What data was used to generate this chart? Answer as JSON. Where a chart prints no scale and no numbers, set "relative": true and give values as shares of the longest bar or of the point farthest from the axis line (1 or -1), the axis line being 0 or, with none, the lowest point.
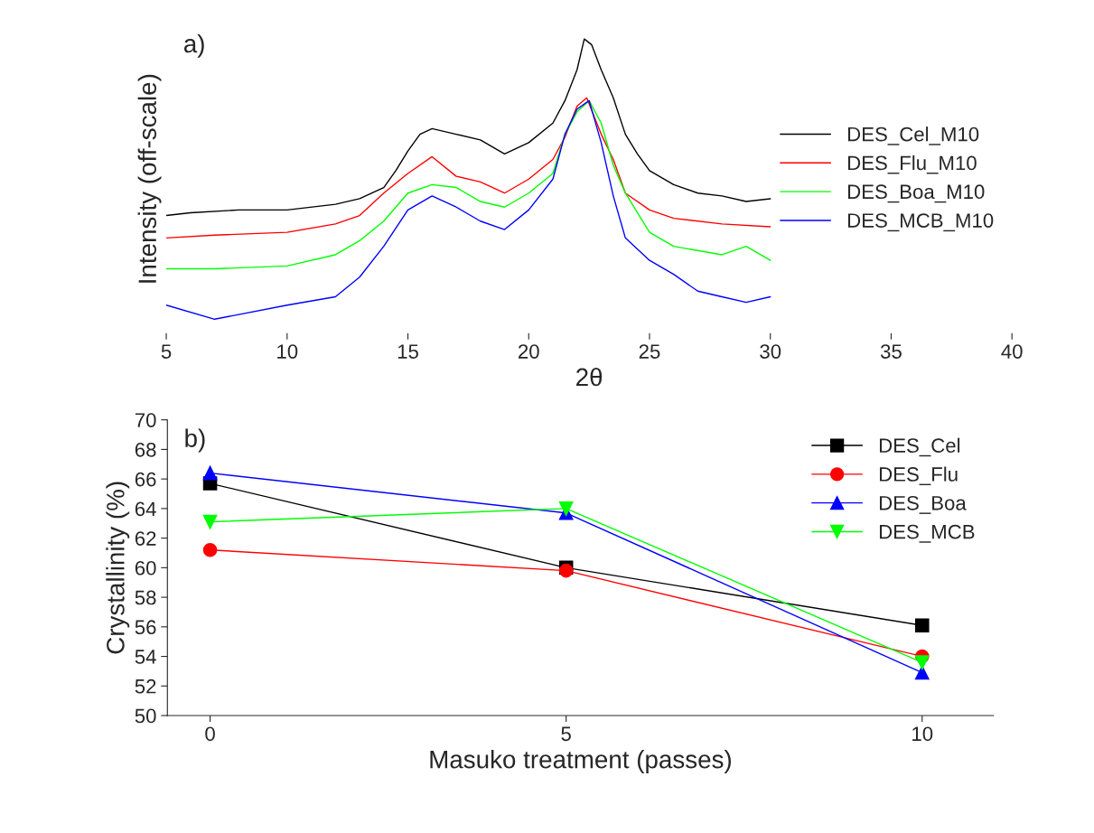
{
  "chart_data": [
    {
      "type": "line",
      "relative": true,
      "xlabel": "2θ",
      "ylabel": "Intensity (off-scale)",
      "annotations": [
        "a)"
      ],
      "xlim": [
        5,
        40
      ],
      "xticks": [
        5,
        10,
        15,
        20,
        25,
        30,
        35,
        40
      ],
      "tick_labels": "x",
      "legend": "right",
      "grid": false,
      "marker": "none",
      "line_style": "solid",
      "series": [
        {
          "name": "DES_Cel_M10",
          "color": "#000000",
          "x": [
            5,
            6,
            8,
            10,
            12,
            13,
            14,
            14.5,
            15,
            15.5,
            16,
            17,
            18,
            19,
            20,
            21,
            21.5,
            22,
            22.3,
            22.6,
            23,
            23.5,
            24,
            24.5,
            25,
            26,
            27,
            28,
            29,
            30
          ],
          "values": [
            0.37,
            0.38,
            0.39,
            0.39,
            0.41,
            0.43,
            0.47,
            0.53,
            0.6,
            0.66,
            0.68,
            0.66,
            0.64,
            0.59,
            0.63,
            0.7,
            0.78,
            0.89,
            1,
            0.98,
            0.89,
            0.79,
            0.66,
            0.59,
            0.53,
            0.48,
            0.45,
            0.44,
            0.42,
            0.43
          ]
        },
        {
          "name": "DES_Flu_M10",
          "color": "#ff0000",
          "x": [
            5,
            7,
            10,
            12,
            13,
            14,
            15,
            16,
            17,
            18,
            19,
            20,
            21,
            21.5,
            22,
            22.4,
            23,
            23.5,
            24,
            25,
            26,
            28,
            30
          ],
          "values": [
            0.29,
            0.3,
            0.31,
            0.34,
            0.37,
            0.45,
            0.52,
            0.58,
            0.51,
            0.49,
            0.45,
            0.5,
            0.57,
            0.65,
            0.76,
            0.79,
            0.66,
            0.57,
            0.45,
            0.39,
            0.36,
            0.34,
            0.33
          ]
        },
        {
          "name": "DES_Boa_M10",
          "color": "#00ff00",
          "x": [
            5,
            7,
            10,
            12,
            13,
            14,
            15,
            16,
            17,
            18,
            19,
            20,
            21,
            21.5,
            22,
            22.5,
            23,
            23.5,
            24,
            25,
            26,
            28,
            29,
            30
          ],
          "values": [
            0.18,
            0.18,
            0.19,
            0.23,
            0.28,
            0.35,
            0.45,
            0.48,
            0.47,
            0.42,
            0.4,
            0.45,
            0.52,
            0.66,
            0.74,
            0.78,
            0.7,
            0.55,
            0.45,
            0.31,
            0.26,
            0.23,
            0.26,
            0.21
          ]
        },
        {
          "name": "DES_MCB_M10",
          "color": "#0000ff",
          "x": [
            5,
            7,
            10,
            12,
            13,
            14,
            15,
            16,
            17,
            18,
            19,
            20,
            21,
            21.5,
            22,
            22.5,
            23,
            23.5,
            24,
            25,
            26,
            27,
            28,
            29,
            30
          ],
          "values": [
            0.05,
            0,
            0.05,
            0.08,
            0.15,
            0.26,
            0.39,
            0.44,
            0.4,
            0.35,
            0.32,
            0.39,
            0.5,
            0.66,
            0.75,
            0.78,
            0.63,
            0.44,
            0.29,
            0.21,
            0.16,
            0.1,
            0.08,
            0.06,
            0.08
          ]
        }
      ]
    },
    {
      "type": "line",
      "xlabel": "Masuko treatment (passes)",
      "ylabel": "Crystallinity (%)",
      "annotations": [
        "b)"
      ],
      "x": [
        0,
        5,
        10
      ],
      "xlim": [
        -0.6,
        11
      ],
      "xticks": [
        0,
        5,
        10
      ],
      "ylim": [
        50,
        70
      ],
      "yticks": [
        50,
        52,
        54,
        56,
        58,
        60,
        62,
        64,
        66,
        68,
        70
      ],
      "legend": "top right",
      "grid": false,
      "line_style": "solid",
      "series": [
        {
          "name": "DES_Cel",
          "color": "#000000",
          "marker": "square",
          "values": [
            65.7,
            60.0,
            56.1
          ]
        },
        {
          "name": "DES_Flu",
          "color": "#ff0000",
          "marker": "circle",
          "values": [
            61.2,
            59.8,
            54.0
          ]
        },
        {
          "name": "DES_Boa",
          "color": "#0000ff",
          "marker": "triangle",
          "values": [
            66.4,
            63.7,
            52.9
          ]
        },
        {
          "name": "DES_MCB",
          "color": "#00ff00",
          "marker": "triangle_down",
          "values": [
            63.1,
            64.0,
            53.6
          ]
        }
      ]
    }
  ]
}
